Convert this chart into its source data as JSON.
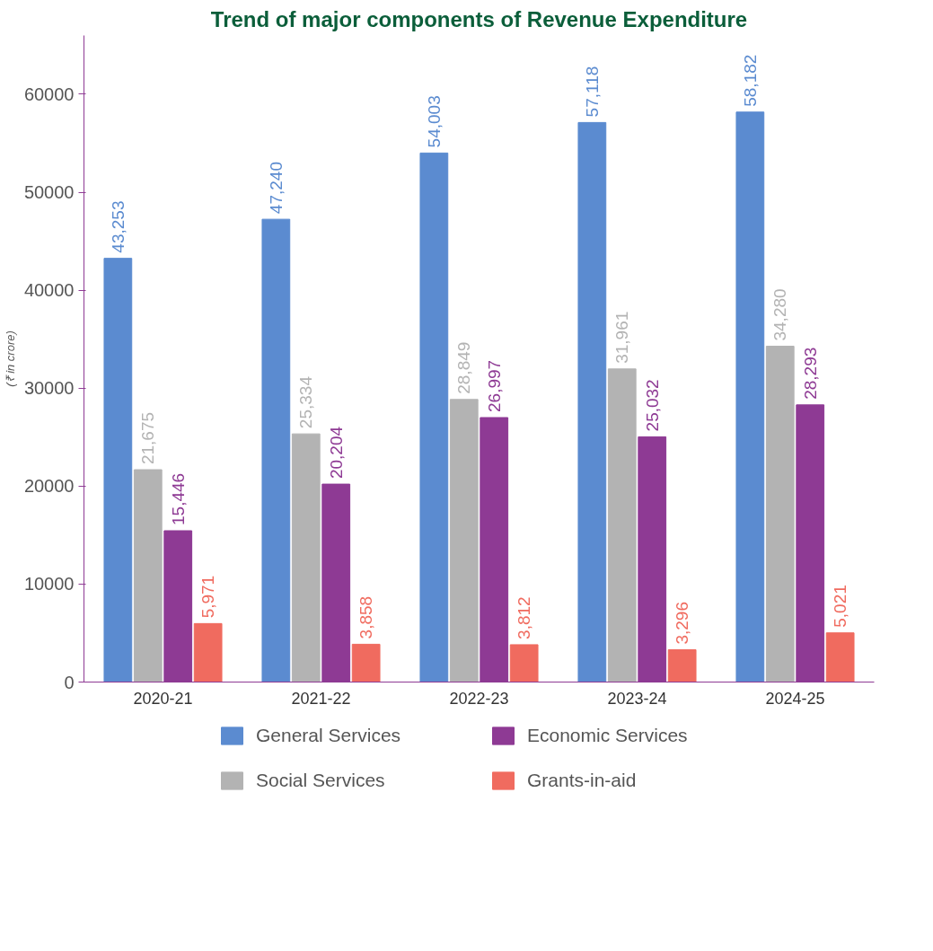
{
  "chart_data": {
    "type": "bar",
    "title": "Trend of major components of Revenue Expenditure",
    "ylabel": "(₹ in crore)",
    "categories": [
      "2020-21",
      "2021-22",
      "2022-23",
      "2023-24",
      "2024-25"
    ],
    "series": [
      {
        "name": "General Services",
        "color": "#5b8bd0",
        "values": [
          43253,
          47240,
          54003,
          57118,
          58182
        ],
        "value_labels": [
          "43,253",
          "47,240",
          "54,003",
          "57,118",
          "58,182"
        ]
      },
      {
        "name": "Social Services",
        "color": "#b3b3b3",
        "values": [
          21675,
          25334,
          28849,
          31961,
          34280
        ],
        "value_labels": [
          "21,675",
          "25,334",
          "28,849",
          "31,961",
          "34,280"
        ]
      },
      {
        "name": "Economic Services",
        "color": "#8e3a94",
        "values": [
          15446,
          20204,
          26997,
          25032,
          28293
        ],
        "value_labels": [
          "15,446",
          "20,204",
          "26,997",
          "25,032",
          "28,293"
        ]
      },
      {
        "name": "Grants-in-aid",
        "color": "#f06b5f",
        "values": [
          5971,
          3858,
          3812,
          3296,
          5021
        ],
        "value_labels": [
          "5,971",
          "3,858",
          "3,812",
          "3,296",
          "5,021"
        ]
      }
    ],
    "ylim": [
      0,
      66000
    ],
    "yticks": [
      0,
      10000,
      20000,
      30000,
      40000,
      50000,
      60000
    ],
    "grid": false,
    "legend": "bottom"
  }
}
